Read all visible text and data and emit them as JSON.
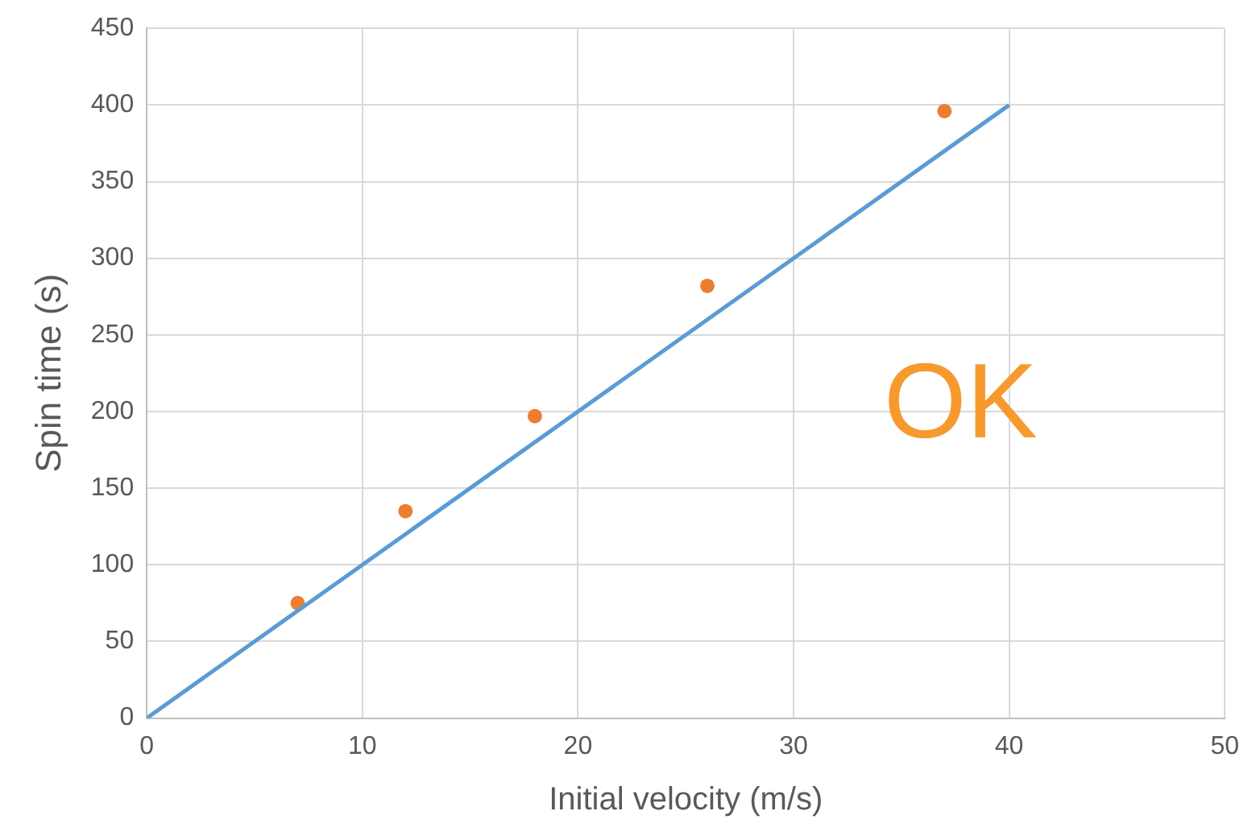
{
  "chart_data": {
    "type": "scatter",
    "xlabel": "Initial velocity (m/s)",
    "ylabel": "Spin time (s)",
    "xlim": [
      0,
      50
    ],
    "xticks": [
      0,
      10,
      20,
      30,
      40,
      50
    ],
    "ylim": [
      0,
      450
    ],
    "yticks": [
      0,
      50,
      100,
      150,
      200,
      250,
      300,
      350,
      400,
      450
    ],
    "grid": true,
    "legend": false,
    "annotations": [
      "OK"
    ],
    "series": [
      {
        "type": "line",
        "color": "#5b9bd5",
        "x": [
          0,
          40
        ],
        "values": [
          0,
          400
        ],
        "marker": "none",
        "line_style": "solid"
      },
      {
        "color": "#ed7d31",
        "x": [
          7,
          12,
          18,
          26,
          37
        ],
        "values": [
          75,
          135,
          197,
          282,
          396
        ],
        "marker": "circle"
      }
    ]
  }
}
